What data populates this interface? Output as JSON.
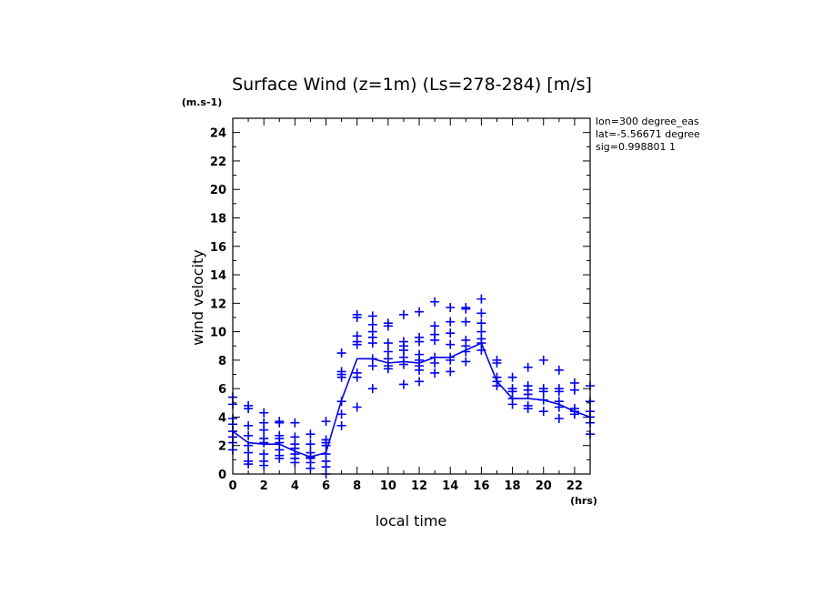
{
  "chart_data": {
    "type": "scatter",
    "title": "Surface Wind (z=1m) (Ls=278-284) [m/s]",
    "xlabel": "local time",
    "ylabel": "wind velocity",
    "x_unit": "(hrs)",
    "y_unit": "(m.s-1)",
    "xlim": [
      0,
      23
    ],
    "ylim": [
      0,
      25
    ],
    "xticks": [
      0,
      2,
      4,
      6,
      8,
      10,
      12,
      14,
      16,
      18,
      20,
      22
    ],
    "yticks": [
      0,
      2,
      4,
      6,
      8,
      10,
      12,
      14,
      16,
      18,
      20,
      22,
      24
    ],
    "grid": false,
    "color": "#0000ee",
    "annotations": [
      "lon=300 degree_eas",
      "lat=-5.56671 degree",
      "sig=0.998801 1"
    ],
    "series": [
      {
        "type": "line",
        "x": [
          0,
          1,
          2,
          3,
          4,
          5,
          6,
          7,
          8,
          9,
          10,
          11,
          12,
          13,
          14,
          15,
          16,
          17,
          18,
          19,
          20,
          21,
          22,
          23
        ],
        "y": [
          3.0,
          2.2,
          2.1,
          2.1,
          1.6,
          1.2,
          1.5,
          5.2,
          8.1,
          8.1,
          7.8,
          7.9,
          7.8,
          8.2,
          8.2,
          8.7,
          9.2,
          6.5,
          5.3,
          5.3,
          5.2,
          4.9,
          4.4,
          4.0
        ]
      },
      {
        "type": "scatter",
        "marker": "+",
        "points": [
          [
            0,
            5.4
          ],
          [
            0,
            4.9
          ],
          [
            0,
            3.9
          ],
          [
            0,
            3.5
          ],
          [
            0,
            3.0
          ],
          [
            0,
            2.6
          ],
          [
            0,
            2.2
          ],
          [
            0,
            1.7
          ],
          [
            1,
            4.8
          ],
          [
            1,
            4.6
          ],
          [
            1,
            3.4
          ],
          [
            1,
            2.7
          ],
          [
            1,
            2.0
          ],
          [
            1,
            1.5
          ],
          [
            1,
            0.9
          ],
          [
            1,
            0.7
          ],
          [
            2,
            4.3
          ],
          [
            2,
            3.6
          ],
          [
            2,
            3.1
          ],
          [
            2,
            2.5
          ],
          [
            2,
            2.2
          ],
          [
            2,
            1.4
          ],
          [
            2,
            0.9
          ],
          [
            2,
            0.6
          ],
          [
            3,
            3.7
          ],
          [
            3,
            3.6
          ],
          [
            3,
            2.7
          ],
          [
            3,
            2.5
          ],
          [
            3,
            2.2
          ],
          [
            3,
            1.7
          ],
          [
            3,
            1.3
          ],
          [
            3,
            1.1
          ],
          [
            4,
            3.6
          ],
          [
            4,
            2.6
          ],
          [
            4,
            2.1
          ],
          [
            4,
            1.8
          ],
          [
            4,
            1.4
          ],
          [
            4,
            1.1
          ],
          [
            4,
            0.8
          ],
          [
            5,
            2.8
          ],
          [
            5,
            2.1
          ],
          [
            5,
            1.5
          ],
          [
            5,
            1.2
          ],
          [
            5,
            1.1
          ],
          [
            5,
            0.8
          ],
          [
            5,
            0.4
          ],
          [
            6,
            3.7
          ],
          [
            6,
            2.4
          ],
          [
            6,
            2.2
          ],
          [
            6,
            2.0
          ],
          [
            6,
            1.4
          ],
          [
            6,
            0.9
          ],
          [
            6,
            0.5
          ],
          [
            6,
            0.0
          ],
          [
            7,
            8.5
          ],
          [
            7,
            7.2
          ],
          [
            7,
            7.0
          ],
          [
            7,
            6.8
          ],
          [
            7,
            5.1
          ],
          [
            7,
            4.2
          ],
          [
            7,
            3.4
          ],
          [
            8,
            11.2
          ],
          [
            8,
            11.0
          ],
          [
            8,
            9.7
          ],
          [
            8,
            9.3
          ],
          [
            8,
            9.1
          ],
          [
            8,
            7.1
          ],
          [
            8,
            6.8
          ],
          [
            8,
            4.7
          ],
          [
            9,
            11.1
          ],
          [
            9,
            10.5
          ],
          [
            9,
            10.0
          ],
          [
            9,
            9.6
          ],
          [
            9,
            9.2
          ],
          [
            9,
            8.1
          ],
          [
            9,
            7.6
          ],
          [
            9,
            6.0
          ],
          [
            10,
            10.6
          ],
          [
            10,
            10.4
          ],
          [
            10,
            9.2
          ],
          [
            10,
            8.6
          ],
          [
            10,
            8.1
          ],
          [
            10,
            7.6
          ],
          [
            10,
            7.4
          ],
          [
            11,
            11.2
          ],
          [
            11,
            9.3
          ],
          [
            11,
            9.0
          ],
          [
            11,
            8.7
          ],
          [
            11,
            8.2
          ],
          [
            11,
            7.7
          ],
          [
            11,
            6.3
          ],
          [
            12,
            11.4
          ],
          [
            12,
            9.6
          ],
          [
            12,
            9.3
          ],
          [
            12,
            8.4
          ],
          [
            12,
            8.0
          ],
          [
            12,
            7.6
          ],
          [
            12,
            7.3
          ],
          [
            12,
            6.5
          ],
          [
            13,
            12.1
          ],
          [
            13,
            10.4
          ],
          [
            13,
            9.8
          ],
          [
            13,
            9.4
          ],
          [
            13,
            8.2
          ],
          [
            13,
            7.8
          ],
          [
            13,
            7.1
          ],
          [
            14,
            11.7
          ],
          [
            14,
            10.7
          ],
          [
            14,
            9.9
          ],
          [
            14,
            9.1
          ],
          [
            14,
            8.2
          ],
          [
            14,
            8.0
          ],
          [
            14,
            7.2
          ],
          [
            15,
            11.7
          ],
          [
            15,
            11.6
          ],
          [
            15,
            10.7
          ],
          [
            15,
            9.4
          ],
          [
            15,
            9.0
          ],
          [
            15,
            8.6
          ],
          [
            15,
            7.9
          ],
          [
            16,
            12.3
          ],
          [
            16,
            11.3
          ],
          [
            16,
            10.6
          ],
          [
            16,
            10.0
          ],
          [
            16,
            9.5
          ],
          [
            16,
            9.2
          ],
          [
            16,
            8.7
          ],
          [
            17,
            8.0
          ],
          [
            17,
            7.8
          ],
          [
            17,
            6.8
          ],
          [
            17,
            6.5
          ],
          [
            17,
            6.2
          ],
          [
            18,
            6.8
          ],
          [
            18,
            6.0
          ],
          [
            18,
            5.8
          ],
          [
            18,
            5.3
          ],
          [
            18,
            4.9
          ],
          [
            19,
            7.5
          ],
          [
            19,
            6.2
          ],
          [
            19,
            5.9
          ],
          [
            19,
            5.6
          ],
          [
            19,
            4.8
          ],
          [
            19,
            4.6
          ],
          [
            20,
            8.0
          ],
          [
            20,
            6.0
          ],
          [
            20,
            5.8
          ],
          [
            20,
            5.2
          ],
          [
            20,
            4.4
          ],
          [
            21,
            7.3
          ],
          [
            21,
            6.0
          ],
          [
            21,
            5.8
          ],
          [
            21,
            5.1
          ],
          [
            21,
            4.7
          ],
          [
            21,
            3.9
          ],
          [
            22,
            6.4
          ],
          [
            22,
            5.9
          ],
          [
            22,
            4.6
          ],
          [
            22,
            4.4
          ],
          [
            22,
            4.2
          ],
          [
            23,
            6.2
          ],
          [
            23,
            5.1
          ],
          [
            23,
            4.4
          ],
          [
            23,
            4.0
          ],
          [
            23,
            3.6
          ],
          [
            23,
            2.8
          ]
        ]
      }
    ]
  }
}
